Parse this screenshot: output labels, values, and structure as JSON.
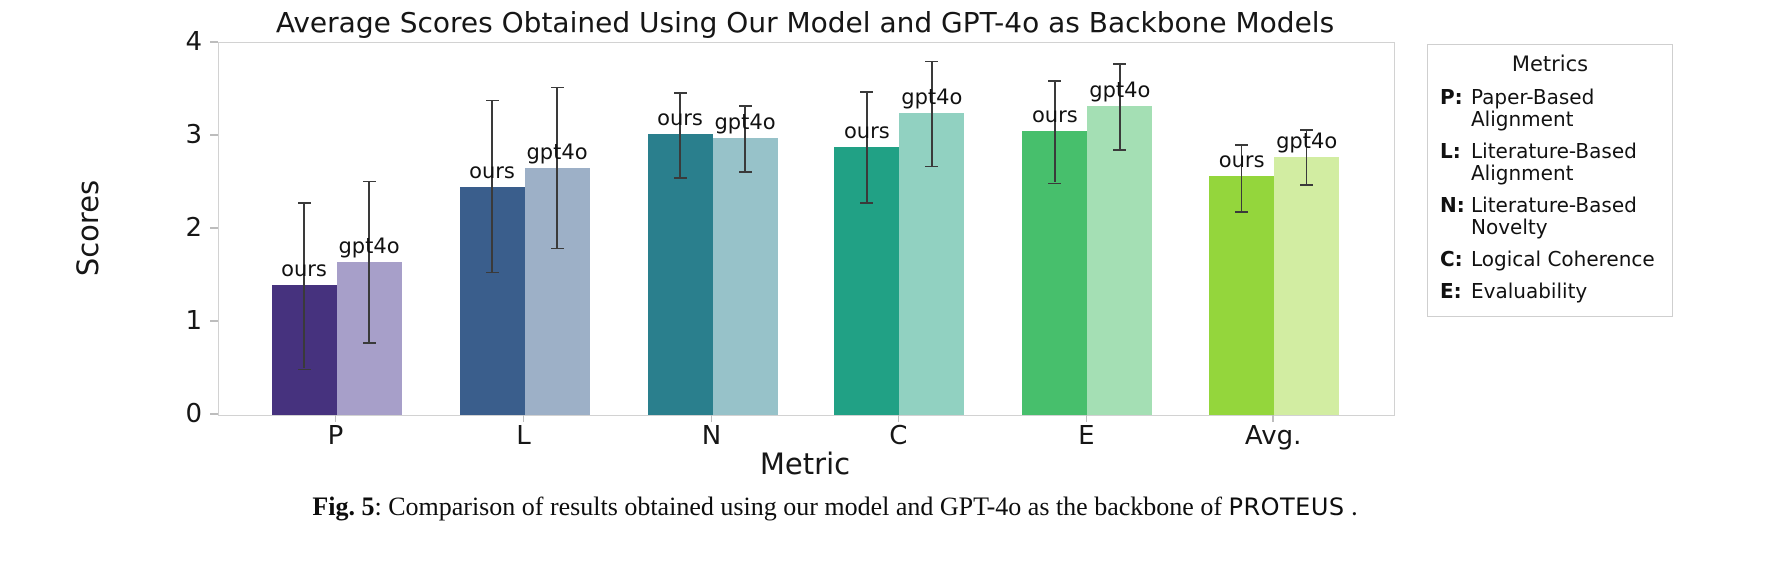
{
  "chart_data": {
    "type": "bar",
    "title": "Average Scores Obtained Using Our Model and GPT-4o as Backbone Models",
    "xlabel": "Metric",
    "ylabel": "Scores",
    "ylim": [
      0,
      4
    ],
    "yticks": [
      0,
      1,
      2,
      3,
      4
    ],
    "categories": [
      "P",
      "L",
      "N",
      "C",
      "E",
      "Avg."
    ],
    "group_centers_pct": [
      10.0,
      26.0,
      42.0,
      57.9,
      73.9,
      89.8
    ],
    "grid": false,
    "legend_position": "right-outside",
    "series": [
      {
        "name": "ours",
        "values": [
          1.4,
          2.45,
          3.02,
          2.88,
          3.05,
          2.57
        ],
        "err_low": [
          0.5,
          1.54,
          2.56,
          2.29,
          2.5,
          2.19
        ],
        "err_high": [
          2.29,
          3.39,
          3.47,
          3.48,
          3.6,
          2.91
        ],
        "colors": [
          "#46327e",
          "#3a5e8c",
          "#2a7f8d",
          "#21a185",
          "#47bf6c",
          "#94d63c"
        ]
      },
      {
        "name": "gpt4o",
        "values": [
          1.65,
          2.66,
          2.98,
          3.25,
          3.32,
          2.77
        ],
        "err_low": [
          0.78,
          1.8,
          2.62,
          2.68,
          2.86,
          2.48
        ],
        "err_high": [
          2.52,
          3.53,
          3.33,
          3.81,
          3.78,
          3.07
        ],
        "colors": [
          "#a79fc9",
          "#9db0c7",
          "#97c2c9",
          "#91d1c1",
          "#a4dfb4",
          "#d2eda2"
        ]
      }
    ]
  },
  "legend": {
    "title": "Metrics",
    "entries": [
      {
        "key": "P:",
        "label": "Paper-Based\nAlignment"
      },
      {
        "key": "L:",
        "label": "Literature-Based\nAlignment"
      },
      {
        "key": "N:",
        "label": "Literature-Based\nNovelty"
      },
      {
        "key": "C:",
        "label": "Logical Coherence"
      },
      {
        "key": "E:",
        "label": "Evaluability"
      }
    ]
  },
  "caption": {
    "fig": "Fig. 5",
    "separator": ": ",
    "text": "Comparison of results obtained using our model and GPT-4o as the backbone of ",
    "model": "PROTEUS",
    "end": " ."
  },
  "colors": {
    "axis_line": "#d2d2d2",
    "tick_mark": "#bdbdbd",
    "error_bar": "#3a3a3a",
    "text": "#161616"
  }
}
